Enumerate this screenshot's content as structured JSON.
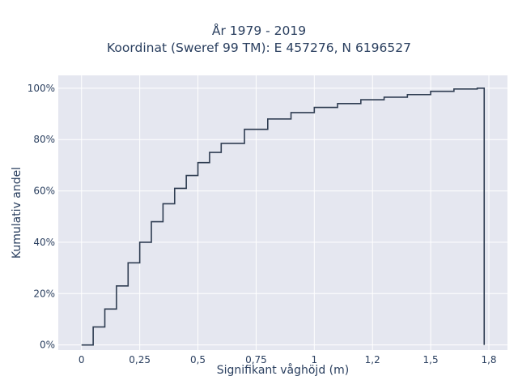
{
  "chart_data": {
    "type": "line",
    "step": true,
    "cumulative": true,
    "title_lines": [
      "År 1979 - 2019",
      "Koordinat (Sweref 99 TM): E 457276, N 6196527"
    ],
    "xlabel": "Signifikant våghöjd (m)",
    "ylabel": "Kumulativ andel",
    "xlim": [
      -0.1,
      1.83
    ],
    "ylim": [
      -0.02,
      1.05
    ],
    "x_ticks": [
      0,
      0.25,
      0.5,
      0.75,
      1,
      1.25,
      1.5,
      1.75
    ],
    "x_tick_labels": [
      "0",
      "0,25",
      "0,5",
      "0,75",
      "1",
      "1,2",
      "1,5",
      "1,8"
    ],
    "y_ticks": [
      0,
      0.2,
      0.4,
      0.6,
      0.8,
      1
    ],
    "y_tick_labels": [
      "0%",
      "20%",
      "40%",
      "60%",
      "80%",
      "100%"
    ],
    "grid": true,
    "legend": "none",
    "colors": {
      "line": "#2f3d52",
      "plot_bg": "#e5e7f0",
      "grid": "#ffffff",
      "text": "#2a3f5f"
    },
    "series": [
      {
        "x": [
          0.0,
          0.05,
          0.1,
          0.15,
          0.2,
          0.25,
          0.3,
          0.35,
          0.4,
          0.45,
          0.5,
          0.55,
          0.6,
          0.7,
          0.8,
          0.9,
          1.0,
          1.1,
          1.2,
          1.3,
          1.4,
          1.5,
          1.6,
          1.7,
          1.73,
          1.73
        ],
        "y": [
          0.0,
          0.07,
          0.14,
          0.23,
          0.32,
          0.4,
          0.48,
          0.55,
          0.61,
          0.66,
          0.71,
          0.75,
          0.785,
          0.84,
          0.88,
          0.905,
          0.925,
          0.94,
          0.955,
          0.965,
          0.975,
          0.988,
          0.997,
          1.0,
          1.0,
          0.0
        ]
      }
    ]
  }
}
